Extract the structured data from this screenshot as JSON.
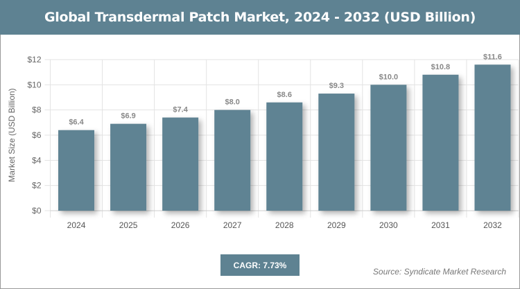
{
  "title": "Global Transdermal Patch Market, 2024 - 2032 (USD Billion)",
  "cagr": "CAGR: 7.73%",
  "source": "Source: Syndicate Market Research",
  "chart_data": {
    "type": "bar",
    "categories": [
      "2024",
      "2025",
      "2026",
      "2027",
      "2028",
      "2029",
      "2030",
      "2031",
      "2032"
    ],
    "values": [
      6.4,
      6.9,
      7.4,
      8.0,
      8.6,
      9.3,
      10.0,
      10.8,
      11.6
    ],
    "data_labels": [
      "$6.4",
      "$6.9",
      "$7.4",
      "$8.0",
      "$8.6",
      "$9.3",
      "$10.0",
      "$10.8",
      "$11.6"
    ],
    "ylabel": "Market Size (USD Billion)",
    "xlabel": "",
    "ylim": [
      0,
      12
    ],
    "yticks": [
      0,
      2,
      4,
      6,
      8,
      10,
      12
    ],
    "ytick_labels": [
      "$0",
      "$2",
      "$4",
      "$6",
      "$8",
      "$10",
      "$12"
    ],
    "grid": true,
    "bar_color": "#5f8393"
  }
}
